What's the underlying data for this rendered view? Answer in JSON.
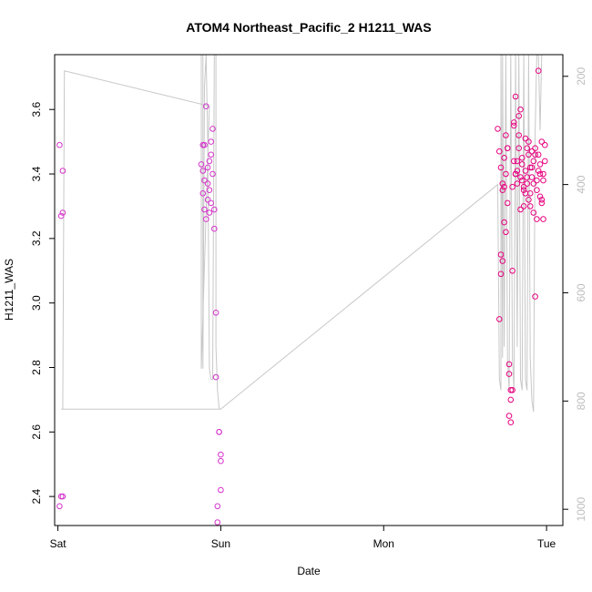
{
  "chart_data": {
    "type": "scatter",
    "title": "ATOM4 Northeast_Pacific_2 H1211_WAS",
    "xlabel": "Date",
    "ylabel": "H1211_WAS",
    "xlim": [
      -0.02,
      3.1
    ],
    "ylim": [
      2.31,
      3.77
    ],
    "x_ticks": [
      {
        "value": 0,
        "label": "Sat"
      },
      {
        "value": 1,
        "label": "Sun"
      },
      {
        "value": 2,
        "label": "Mon"
      },
      {
        "value": 3,
        "label": "Tue"
      }
    ],
    "y_ticks": [
      2.4,
      2.6,
      2.8,
      3.0,
      3.2,
      3.4,
      3.6
    ],
    "right_axis": {
      "ylim": [
        1030,
        160
      ],
      "ticks": [
        200,
        400,
        600,
        800,
        1000
      ]
    },
    "colors": {
      "points": "#e6007e",
      "points_alt": "#d633cc",
      "pressure_line": "#c8c8c8",
      "frame": "#000000"
    },
    "series": [
      {
        "marker": "open-circle",
        "x": [
          0.01,
          0.01,
          0.02,
          0.02,
          0.03,
          0.03,
          0.03,
          0.88,
          0.89,
          0.89,
          0.89,
          0.9,
          0.9,
          0.9,
          0.91,
          0.91,
          0.92,
          0.92,
          0.92,
          0.93,
          0.93,
          0.93,
          0.94,
          0.94,
          0.94,
          0.95,
          0.95,
          0.96,
          0.96,
          0.97,
          0.97,
          0.98,
          0.98,
          0.99,
          0.99,
          1.0,
          1.0,
          1.0,
          2.7,
          2.71,
          2.71,
          2.72,
          2.72,
          2.73,
          2.73,
          2.74,
          2.74,
          2.75,
          2.75,
          2.76,
          2.76,
          2.77,
          2.77,
          2.78,
          2.78,
          2.79,
          2.79,
          2.8,
          2.8,
          2.81,
          2.81,
          2.82,
          2.82,
          2.83,
          2.83,
          2.84,
          2.84,
          2.85,
          2.85,
          2.86,
          2.86,
          2.87,
          2.87,
          2.88,
          2.88,
          2.89,
          2.89,
          2.9,
          2.9,
          2.91,
          2.91,
          2.92,
          2.92,
          2.93,
          2.93,
          2.94,
          2.94,
          2.95,
          2.95,
          2.96,
          2.96,
          2.97,
          2.97,
          2.98,
          2.98,
          2.99,
          2.99,
          2.72,
          2.73,
          2.74,
          2.75,
          2.76,
          2.77,
          2.78,
          2.79,
          2.8,
          2.81,
          2.82,
          2.83,
          2.84,
          2.85,
          2.86,
          2.87,
          2.88,
          2.89,
          2.9,
          2.91,
          2.92,
          2.93,
          2.94,
          2.95,
          2.96,
          2.97,
          2.98
        ],
        "y": [
          3.49,
          2.37,
          3.27,
          2.4,
          3.41,
          3.28,
          2.4,
          3.43,
          3.49,
          3.41,
          3.34,
          3.38,
          3.29,
          3.49,
          3.26,
          3.61,
          3.37,
          3.32,
          3.42,
          3.28,
          3.44,
          3.35,
          3.31,
          3.5,
          3.46,
          3.54,
          3.4,
          3.29,
          3.23,
          2.97,
          2.77,
          2.32,
          2.37,
          2.6,
          2.6,
          2.53,
          2.51,
          2.42,
          3.54,
          3.47,
          2.95,
          3.15,
          3.09,
          3.35,
          3.13,
          3.25,
          3.36,
          3.22,
          3.52,
          3.48,
          3.31,
          2.81,
          2.78,
          2.73,
          2.7,
          3.1,
          3.36,
          3.44,
          3.56,
          3.64,
          3.4,
          3.37,
          3.41,
          3.52,
          3.58,
          3.39,
          3.29,
          3.45,
          3.38,
          3.35,
          3.3,
          3.34,
          3.41,
          3.48,
          3.37,
          3.5,
          3.32,
          3.42,
          3.3,
          3.39,
          3.47,
          3.44,
          3.28,
          3.02,
          3.46,
          3.38,
          3.26,
          3.72,
          3.41,
          3.4,
          3.33,
          3.5,
          3.31,
          3.38,
          3.26,
          3.44,
          3.49,
          3.42,
          3.37,
          3.45,
          3.4,
          3.48,
          2.65,
          2.63,
          2.73,
          3.55,
          3.4,
          3.44,
          3.48,
          3.6,
          3.43,
          3.36,
          3.51,
          3.39,
          3.46,
          3.34,
          3.42,
          3.37,
          3.48,
          3.35,
          3.46,
          3.43,
          3.32,
          3.4
        ]
      }
    ],
    "pressure_path": [
      [
        0.02,
        815
      ],
      [
        0.03,
        815
      ],
      [
        0.04,
        190
      ],
      [
        0.93,
        255
      ],
      [
        0.88,
        740
      ],
      [
        0.88,
        160
      ],
      [
        0.89,
        160
      ],
      [
        0.89,
        740
      ],
      [
        0.9,
        220
      ],
      [
        0.91,
        160
      ],
      [
        0.91,
        160
      ],
      [
        0.92,
        320
      ],
      [
        0.93,
        740
      ],
      [
        0.94,
        760
      ],
      [
        0.95,
        760
      ],
      [
        0.96,
        160
      ],
      [
        0.97,
        160
      ],
      [
        0.97,
        700
      ],
      [
        0.98,
        780
      ],
      [
        0.99,
        815
      ],
      [
        1.0,
        815
      ],
      [
        0.02,
        815
      ],
      [
        1.0,
        815
      ],
      [
        2.7,
        400
      ],
      [
        2.71,
        760
      ],
      [
        2.72,
        780
      ],
      [
        2.72,
        160
      ],
      [
        2.73,
        720
      ],
      [
        2.73,
        160
      ],
      [
        2.74,
        700
      ],
      [
        2.75,
        160
      ],
      [
        2.76,
        720
      ],
      [
        2.77,
        780
      ],
      [
        2.78,
        160
      ],
      [
        2.79,
        720
      ],
      [
        2.8,
        780
      ],
      [
        2.81,
        160
      ],
      [
        2.82,
        700
      ],
      [
        2.83,
        160
      ],
      [
        2.84,
        760
      ],
      [
        2.85,
        780
      ],
      [
        2.86,
        160
      ],
      [
        2.87,
        760
      ],
      [
        2.88,
        780
      ],
      [
        2.89,
        160
      ],
      [
        2.9,
        720
      ],
      [
        2.91,
        800
      ],
      [
        2.92,
        820
      ],
      [
        2.93,
        300
      ],
      [
        2.94,
        160
      ],
      [
        2.95,
        160
      ],
      [
        2.96,
        300
      ],
      [
        2.97,
        160
      ]
    ]
  }
}
